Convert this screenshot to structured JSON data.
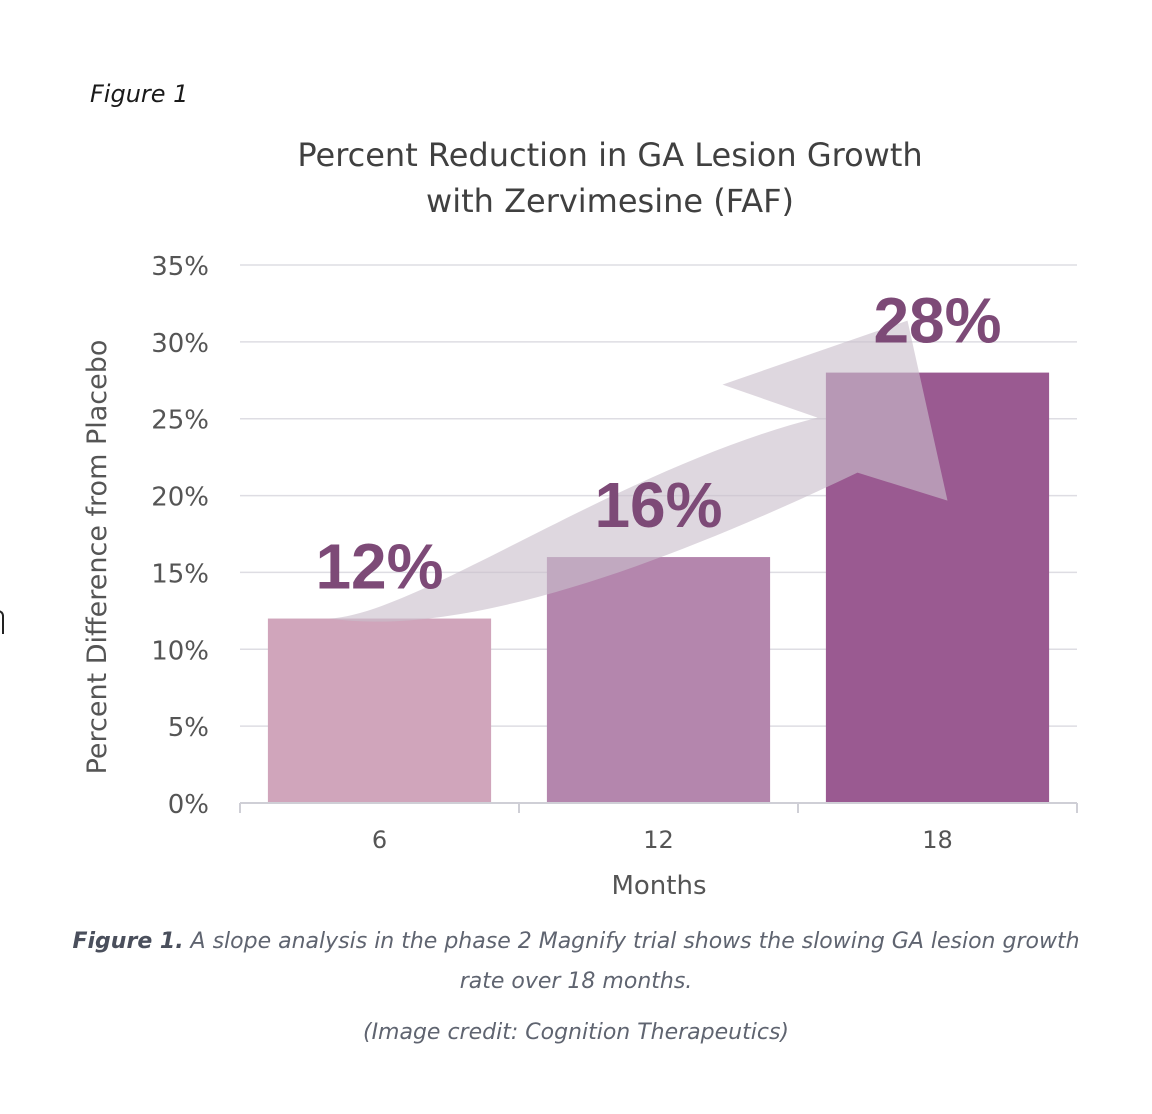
{
  "figure_label": "Figure 1",
  "caption": {
    "lead": "Figure 1.",
    "text": " A slope analysis in the phase 2 Magnify trial shows the slowing GA lesion growth rate over 18 months."
  },
  "credit": "(Image credit: Cognition Therapeutics)",
  "chart_data": {
    "type": "bar",
    "title_lines": [
      "Percent Reduction in GA Lesion Growth",
      "with Zervimesine (FAF)"
    ],
    "xlabel": "Months",
    "ylabel": "Percent Difference from Placebo",
    "categories": [
      "6",
      "12",
      "18"
    ],
    "values": [
      12,
      16,
      28
    ],
    "data_labels": [
      "12%",
      "16%",
      "28%"
    ],
    "ylim": [
      0,
      35
    ],
    "yticks": [
      0,
      5,
      10,
      15,
      20,
      25,
      30,
      35
    ],
    "ytick_labels": [
      "0%",
      "5%",
      "10%",
      "15%",
      "20%",
      "25%",
      "30%",
      "35%"
    ],
    "grid": true,
    "bar_colors": [
      "#d0a5bb",
      "#b486ad",
      "#9a5a91"
    ],
    "label_color": "#7d4a77",
    "arrow_color": "#c9bfcc"
  }
}
